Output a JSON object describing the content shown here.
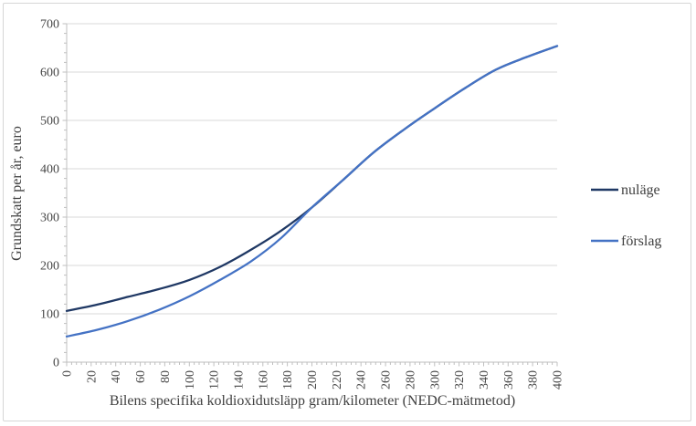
{
  "figure": {
    "background": "#ffffff",
    "border_color": "#d6d6d6"
  },
  "chart_data": {
    "type": "line",
    "title": "",
    "xlabel": "Bilens specifika koldioxidutsläpp gram/kilometer (NEDC-mätmetod)",
    "ylabel": "Grundskatt per år, euro",
    "xlim": [
      0,
      400
    ],
    "ylim": [
      0,
      700
    ],
    "x_major_step": 20,
    "x_minor_step": 4,
    "y_major_step": 100,
    "y_minor_step": 20,
    "x_ticks": [
      0,
      20,
      40,
      60,
      80,
      100,
      120,
      140,
      160,
      180,
      200,
      220,
      240,
      260,
      280,
      300,
      320,
      340,
      360,
      380,
      400
    ],
    "y_ticks": [
      0,
      100,
      200,
      300,
      400,
      500,
      600,
      700
    ],
    "grid": "horizontal",
    "legend_position": "right",
    "x": [
      0,
      25,
      50,
      75,
      100,
      125,
      150,
      175,
      200,
      225,
      250,
      275,
      300,
      325,
      350,
      375,
      400
    ],
    "series": [
      {
        "name": "nuläge",
        "color": "#1f3864",
        "values": [
          106,
          119,
          135,
          151,
          170,
          197,
          232,
          272,
          320,
          376,
          433,
          481,
          525,
          567,
          605,
          631,
          654
        ]
      },
      {
        "name": "förslag",
        "color": "#4472c4",
        "values": [
          53,
          67,
          85,
          108,
          136,
          170,
          208,
          257,
          320,
          376,
          433,
          481,
          525,
          567,
          605,
          631,
          654
        ]
      }
    ],
    "colors": {
      "gridline": "#d9d9d9",
      "axis": "#bfbfbf",
      "text": "#404040"
    }
  }
}
